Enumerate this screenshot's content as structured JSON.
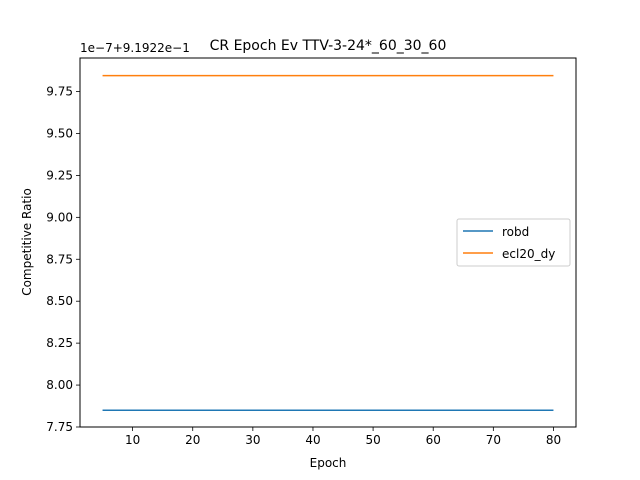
{
  "chart_data": {
    "type": "line",
    "title": "CR Epoch Ev TTV-3-24*_60_30_60",
    "xlabel": "Epoch",
    "ylabel": "Competitive Ratio",
    "y_offset_text": "1e−7+9.1922e−1",
    "xlim": [
      1.25,
      83.75
    ],
    "ylim": [
      7.75,
      9.95
    ],
    "xticks": [
      10,
      20,
      30,
      40,
      50,
      60,
      70,
      80
    ],
    "yticks": [
      7.75,
      8.0,
      8.25,
      8.5,
      8.75,
      9.0,
      9.25,
      9.5,
      9.75
    ],
    "ytick_labels": [
      "7.75",
      "8.00",
      "8.25",
      "8.50",
      "8.75",
      "9.00",
      "9.25",
      "9.50",
      "9.75"
    ],
    "legend_position": "center-right",
    "grid": false,
    "series": [
      {
        "name": "robd",
        "color": "#1f77b4",
        "x": [
          5,
          80
        ],
        "y": [
          7.85,
          7.85
        ]
      },
      {
        "name": "ecl20_dy",
        "color": "#ff7f0e",
        "x": [
          5,
          80
        ],
        "y": [
          9.845,
          9.845
        ]
      }
    ]
  }
}
